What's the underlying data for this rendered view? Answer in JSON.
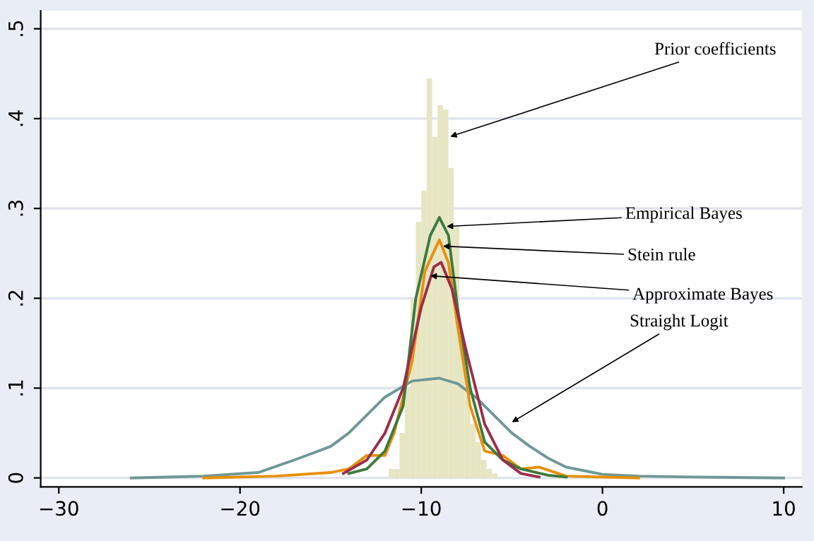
{
  "chart_data": {
    "type": "histogram",
    "color": "#e6e6c3",
    "bins": [
      -11.8,
      -11.5,
      -11.2,
      -10.9,
      -10.6,
      -10.3,
      -10.0,
      -9.7,
      -9.4,
      -9.1,
      -8.8,
      -8.5,
      -8.2,
      -7.9,
      -7.6,
      -7.3,
      -7.0,
      -6.7,
      -6.4,
      -6.1,
      -5.8
    ],
    "values": [
      0.01,
      0.01,
      0.05,
      0.1,
      0.2,
      0.285,
      0.32,
      0.445,
      0.38,
      0.415,
      0.41,
      0.345,
      0.28,
      0.15,
      0.1,
      0.06,
      0.04,
      0.02,
      0.01,
      0.005
    ],
    "series": [
      {
        "type": "line",
        "color": "#6e9896",
        "x": [
          -26,
          -22,
          -19,
          -17,
          -15,
          -14,
          -12,
          -10.5,
          -9,
          -8,
          -7,
          -6,
          -5,
          -4,
          -3,
          -2,
          -1,
          0,
          2,
          5,
          10
        ],
        "values": [
          0,
          0.002,
          0.006,
          0.02,
          0.035,
          0.05,
          0.09,
          0.108,
          0.111,
          0.105,
          0.09,
          0.07,
          0.05,
          0.035,
          0.022,
          0.012,
          0.008,
          0.004,
          0.002,
          0.001,
          0
        ]
      },
      {
        "type": "line",
        "color": "#e8900a",
        "x": [
          -22,
          -18,
          -15,
          -14,
          -13,
          -12,
          -11.5,
          -10.5,
          -9.8,
          -9,
          -8.5,
          -8,
          -7.3,
          -6.5,
          -5.5,
          -4.5,
          -3.5,
          -2,
          2
        ],
        "values": [
          0,
          0.002,
          0.006,
          0.01,
          0.025,
          0.025,
          0.05,
          0.13,
          0.23,
          0.265,
          0.24,
          0.17,
          0.08,
          0.03,
          0.025,
          0.01,
          0.012,
          0.002,
          0
        ]
      },
      {
        "type": "line",
        "color": "#3d7a3d",
        "x": [
          -14,
          -13,
          -12,
          -11,
          -10.3,
          -9.5,
          -9,
          -8.5,
          -8,
          -7.3,
          -6.5,
          -5.5,
          -4.5,
          -3,
          -2
        ],
        "values": [
          0.005,
          0.01,
          0.03,
          0.08,
          0.2,
          0.27,
          0.29,
          0.27,
          0.19,
          0.1,
          0.04,
          0.02,
          0.01,
          0.003,
          0.001
        ]
      },
      {
        "type": "line",
        "color": "#9b2d4a",
        "x": [
          -14.3,
          -13,
          -12,
          -11,
          -10,
          -9.3,
          -8.9,
          -8.3,
          -7.5,
          -6.5,
          -5.5,
          -4.5,
          -3.5
        ],
        "values": [
          0.005,
          0.02,
          0.05,
          0.1,
          0.19,
          0.235,
          0.24,
          0.21,
          0.14,
          0.06,
          0.02,
          0.005,
          0.001
        ]
      }
    ],
    "annotations": [
      {
        "text": "Prior coefficients",
        "x": -8.4,
        "y": 0.38
      },
      {
        "text": "Empirical Bayes",
        "x": -8.6,
        "y": 0.28
      },
      {
        "text": "Stein rule",
        "x": -8.8,
        "y": 0.258
      },
      {
        "text": "Approximate Bayes",
        "x": -9.5,
        "y": 0.225
      },
      {
        "text": "Straight Logit",
        "x": -5.0,
        "y": 0.062
      }
    ],
    "xlim": [
      -31,
      11
    ],
    "ylim": [
      -0.01,
      0.52
    ],
    "xticks": [
      {
        "value": -30,
        "label": "−30"
      },
      {
        "value": -20,
        "label": "−20"
      },
      {
        "value": -10,
        "label": "−10"
      },
      0,
      10
    ],
    "yticks": [
      0,
      {
        "value": 0.1,
        "label": ".1"
      },
      {
        "value": 0.2,
        "label": ".2"
      },
      {
        "value": 0.3,
        "label": ".3"
      },
      {
        "value": 0.4,
        "label": ".4"
      },
      {
        "value": 0.5,
        "label": ".5"
      }
    ],
    "grid": "y"
  }
}
